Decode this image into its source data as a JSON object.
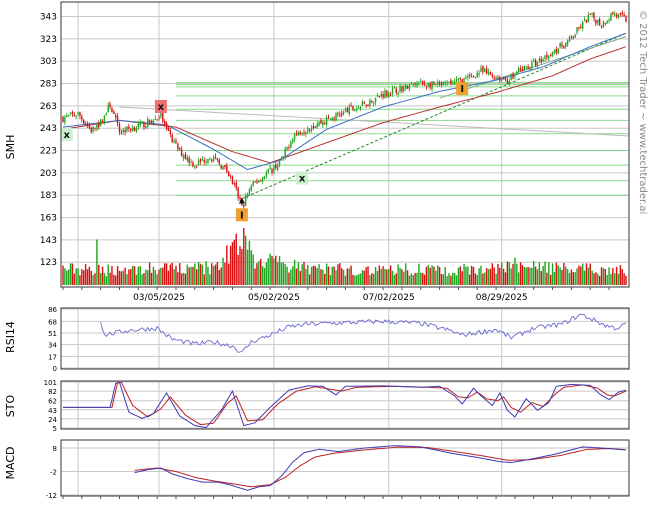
{
  "watermark": "© 2012 Tech Trader ~ www.techtrader.ai",
  "colors": {
    "up": "#1fa51f",
    "down": "#d90f0f",
    "ma_red": "#b83232",
    "ma_blue": "#3a6fc4",
    "grid": "#c8c8c8",
    "support": "#7ed67e",
    "trend": "#228822",
    "line_blue": "#3c3cb4",
    "line_red": "#c02020",
    "rsi": "#6a6ad0"
  },
  "chart_data": [
    {
      "type": "candlestick",
      "panel": "price",
      "ylabel": "SMH",
      "yticks": [
        123,
        143,
        163,
        183,
        203,
        223,
        243,
        263,
        283,
        303,
        323,
        343
      ],
      "ylim": [
        108,
        356
      ],
      "xtick_labels": [
        "03/05/2025",
        "05/02/2025",
        "07/02/2025",
        "08/29/2025"
      ],
      "xtick_index": [
        51,
        112,
        173,
        233
      ],
      "n_bars": 300,
      "waypoints": [
        [
          0,
          252
        ],
        [
          8,
          256
        ],
        [
          15,
          241
        ],
        [
          20,
          248
        ],
        [
          25,
          264
        ],
        [
          30,
          240
        ],
        [
          40,
          245
        ],
        [
          48,
          250
        ],
        [
          52,
          255
        ],
        [
          55,
          240
        ],
        [
          62,
          222
        ],
        [
          70,
          210
        ],
        [
          78,
          218
        ],
        [
          84,
          210
        ],
        [
          88,
          202
        ],
        [
          92,
          187
        ],
        [
          95,
          172
        ],
        [
          99,
          188
        ],
        [
          103,
          196
        ],
        [
          110,
          205
        ],
        [
          116,
          214
        ],
        [
          122,
          236
        ],
        [
          130,
          244
        ],
        [
          140,
          250
        ],
        [
          150,
          258
        ],
        [
          160,
          264
        ],
        [
          170,
          274
        ],
        [
          180,
          279
        ],
        [
          190,
          283
        ],
        [
          200,
          281
        ],
        [
          208,
          284
        ],
        [
          216,
          288
        ],
        [
          222,
          294
        ],
        [
          228,
          290
        ],
        [
          236,
          286
        ],
        [
          244,
          296
        ],
        [
          252,
          302
        ],
        [
          260,
          312
        ],
        [
          268,
          320
        ],
        [
          274,
          332
        ],
        [
          280,
          344
        ],
        [
          286,
          336
        ],
        [
          292,
          346
        ],
        [
          299,
          340
        ]
      ],
      "ma_red_waypoints": [
        [
          0,
          242
        ],
        [
          30,
          250
        ],
        [
          60,
          244
        ],
        [
          90,
          222
        ],
        [
          110,
          212
        ],
        [
          140,
          230
        ],
        [
          170,
          248
        ],
        [
          200,
          262
        ],
        [
          230,
          275
        ],
        [
          260,
          290
        ],
        [
          280,
          305
        ],
        [
          299,
          316
        ]
      ],
      "ma_blue_waypoints": [
        [
          0,
          244
        ],
        [
          30,
          250
        ],
        [
          55,
          246
        ],
        [
          80,
          224
        ],
        [
          98,
          206
        ],
        [
          115,
          214
        ],
        [
          140,
          242
        ],
        [
          170,
          262
        ],
        [
          200,
          276
        ],
        [
          230,
          286
        ],
        [
          255,
          298
        ],
        [
          280,
          316
        ],
        [
          299,
          328
        ]
      ],
      "support_levels": [
        183,
        196,
        210,
        223,
        238,
        250,
        260,
        272,
        280,
        282,
        284
      ],
      "trendline": [
        [
          95,
          180
        ],
        [
          299,
          328
        ]
      ],
      "markers": [
        {
          "type": "sell",
          "label": "x",
          "x": 52,
          "y": 262
        },
        {
          "type": "buy",
          "label": "x",
          "x": 2,
          "y": 237
        },
        {
          "type": "buy",
          "label": "x",
          "x": 127,
          "y": 198
        },
        {
          "type": "info",
          "label": "I",
          "x": 95,
          "y": 165
        },
        {
          "type": "info",
          "label": "I",
          "x": 212,
          "y": 278
        }
      ],
      "volume": {
        "ymax": 100,
        "waypoints": [
          [
            0,
            30
          ],
          [
            20,
            28
          ],
          [
            50,
            30
          ],
          [
            80,
            32
          ],
          [
            90,
            60
          ],
          [
            96,
            95
          ],
          [
            102,
            45
          ],
          [
            130,
            30
          ],
          [
            200,
            28
          ],
          [
            250,
            32
          ],
          [
            299,
            26
          ]
        ],
        "spikes": [
          [
            18,
            80
          ],
          [
            55,
            38
          ],
          [
            85,
            48
          ],
          [
            92,
            90
          ],
          [
            94,
            68
          ],
          [
            96,
            100
          ],
          [
            98,
            62
          ],
          [
            104,
            42
          ],
          [
            240,
            48
          ],
          [
            260,
            38
          ]
        ]
      }
    },
    {
      "type": "line",
      "panel": "rsi",
      "ylabel": "RSI14",
      "yticks": [
        0,
        17,
        34,
        51,
        68,
        86
      ],
      "ylim": [
        0,
        86
      ],
      "start_index": 20,
      "waypoints": [
        [
          20,
          68
        ],
        [
          22,
          48
        ],
        [
          35,
          55
        ],
        [
          50,
          58
        ],
        [
          58,
          42
        ],
        [
          70,
          35
        ],
        [
          80,
          38
        ],
        [
          90,
          32
        ],
        [
          95,
          22
        ],
        [
          100,
          38
        ],
        [
          110,
          48
        ],
        [
          120,
          60
        ],
        [
          130,
          64
        ],
        [
          150,
          66
        ],
        [
          170,
          68
        ],
        [
          190,
          65
        ],
        [
          205,
          55
        ],
        [
          212,
          48
        ],
        [
          230,
          56
        ],
        [
          238,
          44
        ],
        [
          250,
          58
        ],
        [
          265,
          64
        ],
        [
          275,
          78
        ],
        [
          282,
          70
        ],
        [
          288,
          62
        ],
        [
          294,
          58
        ],
        [
          299,
          64
        ]
      ]
    },
    {
      "type": "line",
      "panel": "stochastic",
      "ylabel": "STO",
      "yticks": [
        5,
        24,
        43,
        62,
        82,
        101
      ],
      "ylim": [
        5,
        101
      ],
      "series": [
        {
          "waypoints": [
            [
              0,
              48
            ],
            [
              25,
              48
            ],
            [
              28,
              98
            ],
            [
              30,
              100
            ],
            [
              35,
              38
            ],
            [
              42,
              25
            ],
            [
              48,
              35
            ],
            [
              55,
              78
            ],
            [
              62,
              30
            ],
            [
              70,
              10
            ],
            [
              76,
              6
            ],
            [
              84,
              42
            ],
            [
              90,
              82
            ],
            [
              96,
              10
            ],
            [
              102,
              16
            ],
            [
              110,
              48
            ],
            [
              120,
              84
            ],
            [
              130,
              93
            ],
            [
              138,
              92
            ],
            [
              145,
              74
            ],
            [
              150,
              92
            ],
            [
              170,
              93
            ],
            [
              190,
              90
            ],
            [
              200,
              92
            ],
            [
              208,
              72
            ],
            [
              212,
              55
            ],
            [
              218,
              88
            ],
            [
              222,
              72
            ],
            [
              228,
              52
            ],
            [
              232,
              78
            ],
            [
              236,
              42
            ],
            [
              240,
              28
            ],
            [
              246,
              66
            ],
            [
              252,
              42
            ],
            [
              258,
              58
            ],
            [
              262,
              92
            ],
            [
              270,
              96
            ],
            [
              280,
              94
            ],
            [
              285,
              76
            ],
            [
              290,
              64
            ],
            [
              295,
              80
            ],
            [
              299,
              84
            ]
          ]
        },
        {
          "waypoints": [
            [
              0,
              48
            ],
            [
              26,
              48
            ],
            [
              29,
              100
            ],
            [
              31,
              100
            ],
            [
              37,
              52
            ],
            [
              45,
              28
            ],
            [
              52,
              45
            ],
            [
              57,
              70
            ],
            [
              65,
              32
            ],
            [
              73,
              12
            ],
            [
              80,
              15
            ],
            [
              87,
              55
            ],
            [
              92,
              72
            ],
            [
              98,
              20
            ],
            [
              106,
              22
            ],
            [
              114,
              55
            ],
            [
              124,
              82
            ],
            [
              134,
              91
            ],
            [
              142,
              86
            ],
            [
              148,
              82
            ],
            [
              156,
              90
            ],
            [
              176,
              92
            ],
            [
              194,
              90
            ],
            [
              204,
              88
            ],
            [
              210,
              70
            ],
            [
              215,
              68
            ],
            [
              220,
              80
            ],
            [
              225,
              66
            ],
            [
              231,
              62
            ],
            [
              234,
              70
            ],
            [
              238,
              48
            ],
            [
              243,
              38
            ],
            [
              249,
              58
            ],
            [
              255,
              50
            ],
            [
              261,
              74
            ],
            [
              266,
              90
            ],
            [
              276,
              95
            ],
            [
              284,
              88
            ],
            [
              289,
              74
            ],
            [
              293,
              72
            ],
            [
              299,
              82
            ]
          ]
        }
      ]
    },
    {
      "type": "line",
      "panel": "macd",
      "ylabel": "MACD",
      "yticks": [
        -12,
        -2,
        8
      ],
      "ylim": [
        -12,
        11
      ],
      "start_index": 38,
      "series": [
        {
          "waypoints": [
            [
              38,
              -2.5
            ],
            [
              45,
              -1.2
            ],
            [
              52,
              -0.5
            ],
            [
              58,
              -3
            ],
            [
              66,
              -5
            ],
            [
              74,
              -6.5
            ],
            [
              82,
              -6.5
            ],
            [
              88,
              -7.5
            ],
            [
              94,
              -9
            ],
            [
              98,
              -10
            ],
            [
              104,
              -8.5
            ],
            [
              110,
              -8
            ],
            [
              116,
              -4
            ],
            [
              122,
              2
            ],
            [
              128,
              6
            ],
            [
              136,
              7.5
            ],
            [
              146,
              6.5
            ],
            [
              160,
              8
            ],
            [
              176,
              9
            ],
            [
              190,
              8.5
            ],
            [
              206,
              5.8
            ],
            [
              220,
              4
            ],
            [
              232,
              2.2
            ],
            [
              238,
              1.8
            ],
            [
              248,
              3.2
            ],
            [
              262,
              5.5
            ],
            [
              276,
              8.5
            ],
            [
              286,
              8
            ],
            [
              294,
              7.5
            ],
            [
              299,
              7.2
            ]
          ]
        },
        {
          "waypoints": [
            [
              38,
              -1.5
            ],
            [
              50,
              -0.5
            ],
            [
              60,
              -2
            ],
            [
              70,
              -4.5
            ],
            [
              80,
              -6
            ],
            [
              90,
              -7.2
            ],
            [
              100,
              -8.5
            ],
            [
              110,
              -7.6
            ],
            [
              118,
              -4.5
            ],
            [
              126,
              0.5
            ],
            [
              134,
              4.2
            ],
            [
              144,
              5.8
            ],
            [
              160,
              7.2
            ],
            [
              178,
              8.4
            ],
            [
              194,
              8.2
            ],
            [
              208,
              6.5
            ],
            [
              222,
              4.8
            ],
            [
              236,
              2.8
            ],
            [
              248,
              3
            ],
            [
              264,
              4.8
            ],
            [
              278,
              7.4
            ],
            [
              290,
              7.8
            ],
            [
              299,
              7.3
            ]
          ]
        }
      ]
    }
  ]
}
